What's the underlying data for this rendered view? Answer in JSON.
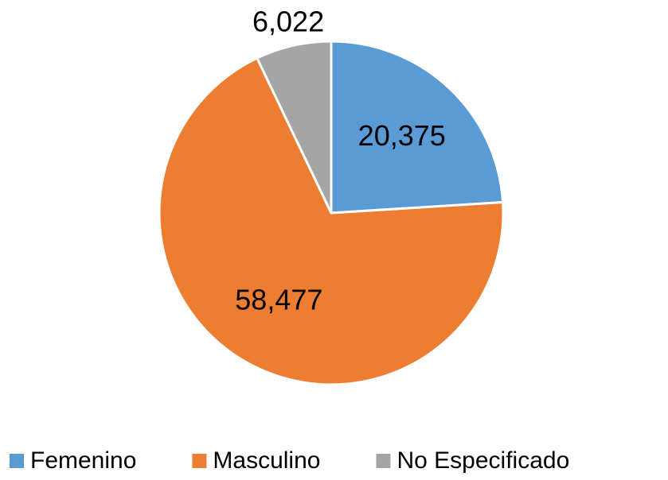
{
  "chart_data": {
    "type": "pie",
    "categories": [
      "Femenino",
      "Masculino",
      "No Especificado"
    ],
    "values": [
      20375,
      58477,
      6022
    ],
    "value_labels": [
      "20,375",
      "58,477",
      "6,022"
    ],
    "colors": [
      "#5b9bd5",
      "#ed7d31",
      "#a5a5a5"
    ],
    "legend": "bottom"
  }
}
